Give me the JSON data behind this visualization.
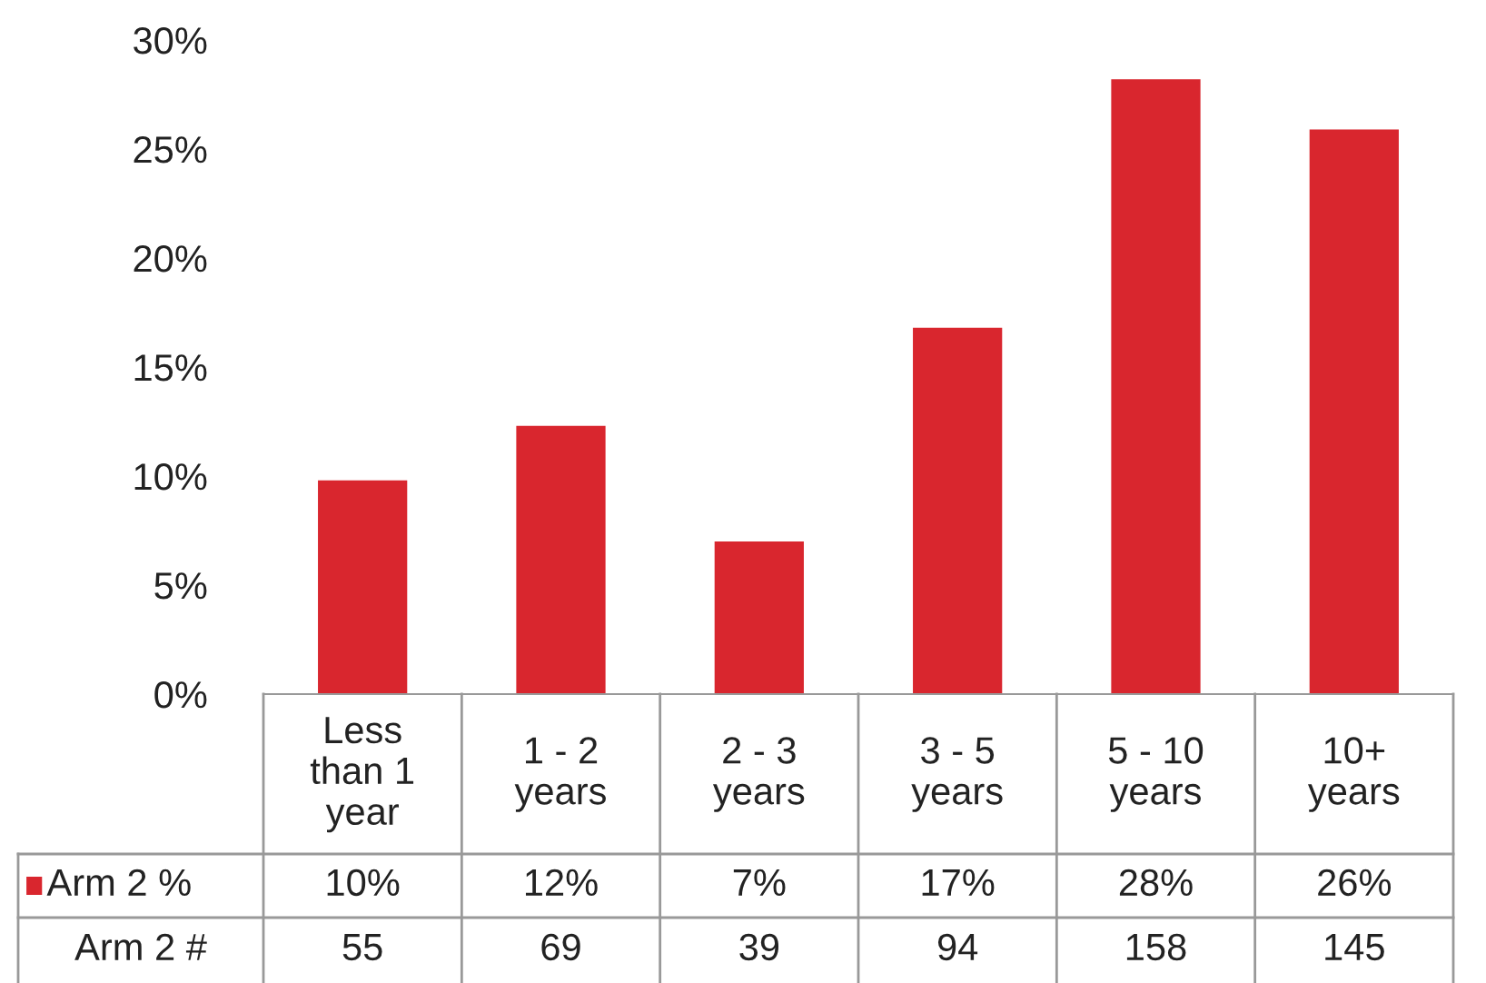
{
  "chart_data": {
    "type": "bar",
    "categories": [
      "Less\nthan 1\nyear",
      "1 - 2\nyears",
      "2 - 3\nyears",
      "3 - 5\nyears",
      "5 - 10\nyears",
      "10+\nyears"
    ],
    "series": [
      {
        "name": "Arm 2 %",
        "color": "#d9262e",
        "values": [
          9.8,
          12.3,
          7.0,
          16.8,
          28.2,
          25.9
        ],
        "value_labels": [
          "10%",
          "12%",
          "7%",
          "17%",
          "28%",
          "26%"
        ]
      }
    ],
    "annotations": [
      "Arm 2 #",
      "55",
      "69",
      "39",
      "94",
      "158",
      "145"
    ],
    "ylim": [
      0,
      30
    ],
    "yticks": [
      {
        "value": 0,
        "label": "0%"
      },
      {
        "value": 5,
        "label": "5%"
      },
      {
        "value": 10,
        "label": "10%"
      },
      {
        "value": 15,
        "label": "15%"
      },
      {
        "value": 20,
        "label": "20%"
      },
      {
        "value": 25,
        "label": "25%"
      },
      {
        "value": 30,
        "label": "30%"
      }
    ],
    "grid": false,
    "legend": "bottom"
  }
}
